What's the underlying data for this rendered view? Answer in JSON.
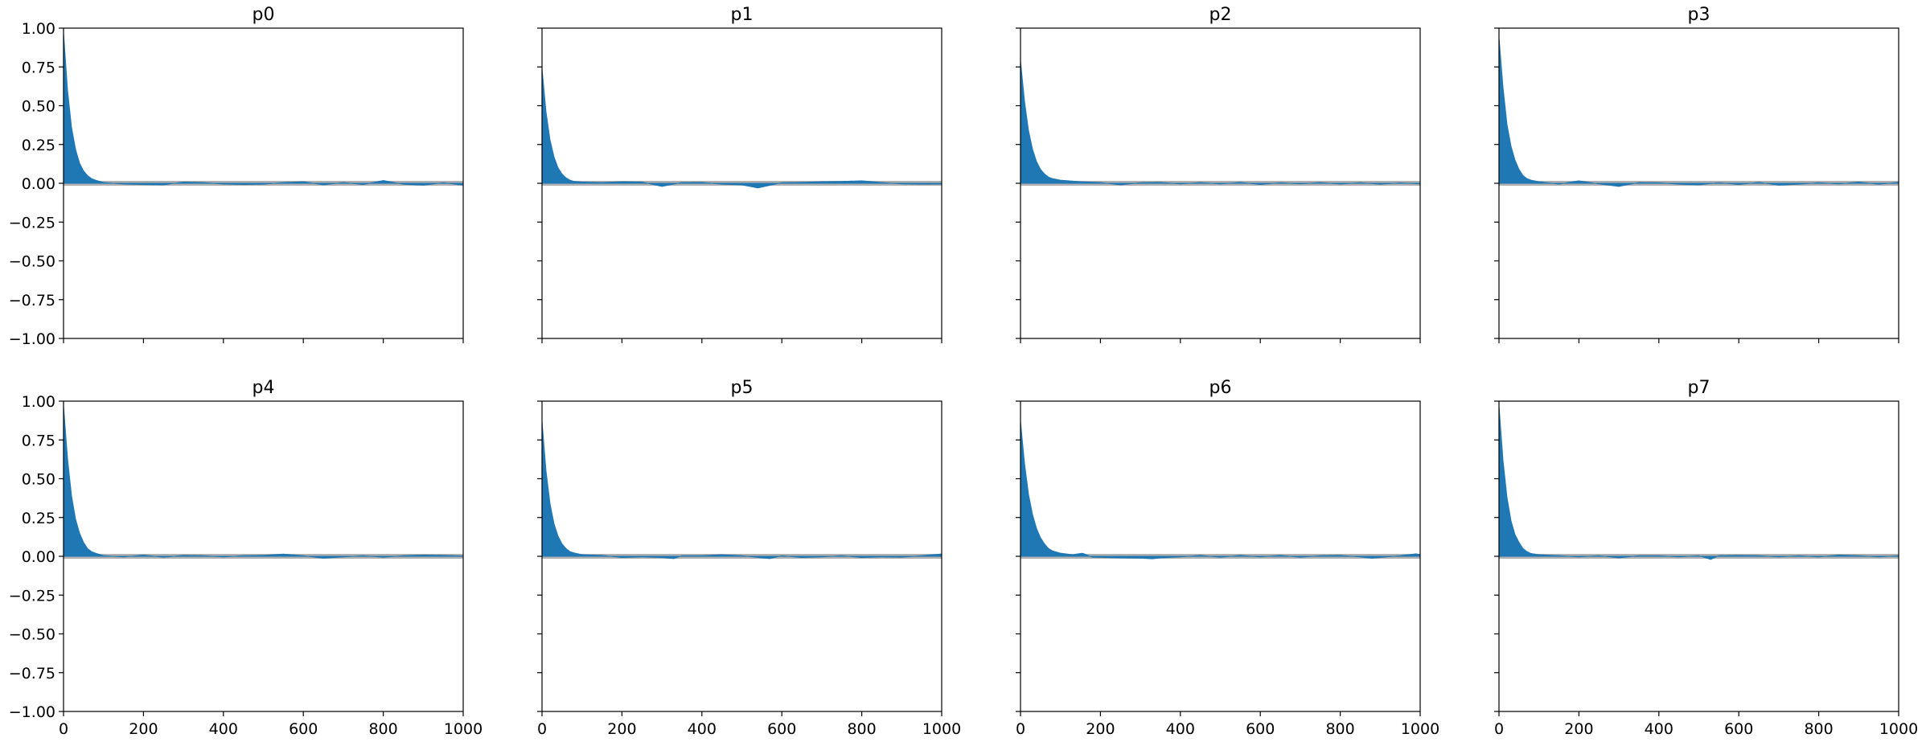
{
  "chart_data": [
    {
      "type": "area",
      "title": "p0",
      "xlim": [
        0,
        1000
      ],
      "ylim": [
        -1.0,
        1.0
      ],
      "grid": false,
      "xticks": [
        "0",
        "200",
        "400",
        "600",
        "800",
        "1000"
      ],
      "yticks": [
        "1.00",
        "0.75",
        "0.50",
        "0.25",
        "0.00",
        "−0.25",
        "−0.50",
        "−0.75",
        "−1.00"
      ],
      "series": [
        {
          "color": "#1f77b4",
          "start": 0.97,
          "decay_lags": 22,
          "points": [
            [
              0,
              0.97
            ],
            [
              10,
              0.6
            ],
            [
              20,
              0.36
            ],
            [
              30,
              0.22
            ],
            [
              40,
              0.13
            ],
            [
              50,
              0.08
            ],
            [
              60,
              0.05
            ],
            [
              70,
              0.03
            ],
            [
              80,
              0.02
            ],
            [
              100,
              0.005
            ],
            [
              150,
              -0.005
            ],
            [
              200,
              -0.008
            ],
            [
              250,
              -0.01
            ],
            [
              300,
              0.008
            ],
            [
              350,
              0.005
            ],
            [
              400,
              -0.005
            ],
            [
              450,
              -0.008
            ],
            [
              500,
              -0.006
            ],
            [
              550,
              0.005
            ],
            [
              600,
              0.01
            ],
            [
              650,
              -0.01
            ],
            [
              700,
              0.005
            ],
            [
              750,
              -0.008
            ],
            [
              800,
              0.018
            ],
            [
              850,
              -0.006
            ],
            [
              900,
              -0.012
            ],
            [
              950,
              0.004
            ],
            [
              1000,
              -0.012
            ]
          ]
        }
      ]
    },
    {
      "type": "area",
      "title": "p1",
      "xlim": [
        0,
        1000
      ],
      "ylim": [
        -1.0,
        1.0
      ],
      "grid": false,
      "xticks": [
        "0",
        "200",
        "400",
        "600",
        "800",
        "1000"
      ],
      "series": [
        {
          "color": "#1f77b4",
          "start": 0.74,
          "decay_lags": 22,
          "points": [
            [
              0,
              0.74
            ],
            [
              10,
              0.46
            ],
            [
              20,
              0.28
            ],
            [
              30,
              0.17
            ],
            [
              40,
              0.1
            ],
            [
              50,
              0.06
            ],
            [
              60,
              0.035
            ],
            [
              70,
              0.02
            ],
            [
              80,
              0.012
            ],
            [
              100,
              0.008
            ],
            [
              150,
              0.005
            ],
            [
              200,
              0.01
            ],
            [
              250,
              0.008
            ],
            [
              300,
              -0.02
            ],
            [
              350,
              0.005
            ],
            [
              400,
              0.006
            ],
            [
              450,
              -0.006
            ],
            [
              500,
              -0.01
            ],
            [
              540,
              -0.03
            ],
            [
              600,
              0.004
            ],
            [
              650,
              0.006
            ],
            [
              700,
              0.01
            ],
            [
              750,
              0.012
            ],
            [
              800,
              0.016
            ],
            [
              850,
              0.005
            ],
            [
              900,
              -0.004
            ],
            [
              950,
              -0.006
            ],
            [
              1000,
              -0.005
            ]
          ]
        }
      ]
    },
    {
      "type": "area",
      "title": "p2",
      "xlim": [
        0,
        1000
      ],
      "ylim": [
        -1.0,
        1.0
      ],
      "grid": false,
      "xticks": [
        "0",
        "200",
        "400",
        "600",
        "800",
        "1000"
      ],
      "series": [
        {
          "color": "#1f77b4",
          "start": 0.79,
          "decay_lags": 26,
          "points": [
            [
              0,
              0.79
            ],
            [
              10,
              0.53
            ],
            [
              20,
              0.34
            ],
            [
              30,
              0.22
            ],
            [
              40,
              0.14
            ],
            [
              50,
              0.09
            ],
            [
              60,
              0.06
            ],
            [
              70,
              0.04
            ],
            [
              80,
              0.03
            ],
            [
              100,
              0.02
            ],
            [
              150,
              0.01
            ],
            [
              200,
              0.005
            ],
            [
              250,
              -0.01
            ],
            [
              300,
              0.004
            ],
            [
              350,
              0.006
            ],
            [
              400,
              -0.004
            ],
            [
              450,
              0.005
            ],
            [
              500,
              -0.004
            ],
            [
              550,
              0.006
            ],
            [
              600,
              -0.008
            ],
            [
              650,
              0.004
            ],
            [
              700,
              -0.004
            ],
            [
              750,
              0.005
            ],
            [
              800,
              -0.005
            ],
            [
              850,
              0.004
            ],
            [
              900,
              -0.006
            ],
            [
              950,
              0.003
            ],
            [
              1000,
              -0.004
            ]
          ]
        }
      ]
    },
    {
      "type": "area",
      "title": "p3",
      "xlim": [
        0,
        1000
      ],
      "ylim": [
        -1.0,
        1.0
      ],
      "grid": false,
      "xticks": [
        "0",
        "200",
        "400",
        "600",
        "800",
        "1000"
      ],
      "series": [
        {
          "color": "#1f77b4",
          "start": 0.94,
          "decay_lags": 24,
          "points": [
            [
              0,
              0.94
            ],
            [
              10,
              0.62
            ],
            [
              20,
              0.38
            ],
            [
              30,
              0.24
            ],
            [
              40,
              0.15
            ],
            [
              50,
              0.09
            ],
            [
              60,
              0.05
            ],
            [
              70,
              0.03
            ],
            [
              80,
              0.02
            ],
            [
              100,
              0.01
            ],
            [
              150,
              -0.005
            ],
            [
              200,
              0.016
            ],
            [
              250,
              -0.004
            ],
            [
              300,
              -0.02
            ],
            [
              350,
              0.005
            ],
            [
              400,
              0.004
            ],
            [
              450,
              -0.006
            ],
            [
              500,
              -0.01
            ],
            [
              550,
              0.004
            ],
            [
              600,
              -0.008
            ],
            [
              650,
              0.006
            ],
            [
              700,
              -0.012
            ],
            [
              750,
              -0.006
            ],
            [
              800,
              0.004
            ],
            [
              850,
              -0.004
            ],
            [
              900,
              0.008
            ],
            [
              950,
              -0.006
            ],
            [
              1000,
              0.006
            ]
          ]
        }
      ]
    },
    {
      "type": "area",
      "title": "p4",
      "xlim": [
        0,
        1000
      ],
      "ylim": [
        -1.0,
        1.0
      ],
      "grid": false,
      "xticks": [
        "0",
        "200",
        "400",
        "600",
        "800",
        "1000"
      ],
      "series": [
        {
          "color": "#1f77b4",
          "start": 0.97,
          "decay_lags": 24,
          "points": [
            [
              0,
              0.97
            ],
            [
              10,
              0.63
            ],
            [
              20,
              0.39
            ],
            [
              30,
              0.24
            ],
            [
              40,
              0.15
            ],
            [
              50,
              0.09
            ],
            [
              60,
              0.05
            ],
            [
              70,
              0.03
            ],
            [
              80,
              0.02
            ],
            [
              100,
              0.004
            ],
            [
              150,
              -0.004
            ],
            [
              200,
              0.008
            ],
            [
              250,
              -0.006
            ],
            [
              300,
              0.006
            ],
            [
              350,
              0.004
            ],
            [
              400,
              -0.004
            ],
            [
              450,
              0.004
            ],
            [
              500,
              0.006
            ],
            [
              550,
              0.014
            ],
            [
              600,
              0.004
            ],
            [
              650,
              -0.012
            ],
            [
              700,
              -0.004
            ],
            [
              750,
              0.004
            ],
            [
              800,
              -0.006
            ],
            [
              850,
              0.004
            ],
            [
              900,
              0.008
            ],
            [
              950,
              0.006
            ],
            [
              1000,
              0.002
            ]
          ]
        }
      ]
    },
    {
      "type": "area",
      "title": "p5",
      "xlim": [
        0,
        1000
      ],
      "ylim": [
        -1.0,
        1.0
      ],
      "grid": false,
      "xticks": [
        "0",
        "200",
        "400",
        "600",
        "800",
        "1000"
      ],
      "series": [
        {
          "color": "#1f77b4",
          "start": 0.87,
          "decay_lags": 22,
          "points": [
            [
              0,
              0.87
            ],
            [
              10,
              0.55
            ],
            [
              20,
              0.34
            ],
            [
              30,
              0.21
            ],
            [
              40,
              0.13
            ],
            [
              50,
              0.08
            ],
            [
              60,
              0.05
            ],
            [
              70,
              0.03
            ],
            [
              80,
              0.022
            ],
            [
              100,
              0.01
            ],
            [
              150,
              0.006
            ],
            [
              200,
              -0.008
            ],
            [
              250,
              -0.004
            ],
            [
              300,
              -0.008
            ],
            [
              330,
              -0.015
            ],
            [
              350,
              0.004
            ],
            [
              400,
              0.004
            ],
            [
              450,
              0.01
            ],
            [
              500,
              0.004
            ],
            [
              550,
              -0.01
            ],
            [
              570,
              -0.015
            ],
            [
              600,
              0.004
            ],
            [
              650,
              -0.008
            ],
            [
              700,
              -0.004
            ],
            [
              750,
              0.004
            ],
            [
              800,
              -0.008
            ],
            [
              850,
              -0.004
            ],
            [
              900,
              -0.006
            ],
            [
              950,
              0.004
            ],
            [
              1000,
              0.015
            ]
          ]
        }
      ]
    },
    {
      "type": "area",
      "title": "p6",
      "xlim": [
        0,
        1000
      ],
      "ylim": [
        -1.0,
        1.0
      ],
      "grid": false,
      "xticks": [
        "0",
        "200",
        "400",
        "600",
        "800",
        "1000"
      ],
      "series": [
        {
          "color": "#1f77b4",
          "start": 0.87,
          "decay_lags": 28,
          "points": [
            [
              0,
              0.87
            ],
            [
              10,
              0.6
            ],
            [
              20,
              0.4
            ],
            [
              30,
              0.27
            ],
            [
              40,
              0.18
            ],
            [
              50,
              0.12
            ],
            [
              60,
              0.08
            ],
            [
              70,
              0.05
            ],
            [
              80,
              0.035
            ],
            [
              100,
              0.02
            ],
            [
              130,
              0.01
            ],
            [
              155,
              0.02
            ],
            [
              180,
              -0.006
            ],
            [
              250,
              -0.01
            ],
            [
              300,
              -0.012
            ],
            [
              330,
              -0.016
            ],
            [
              350,
              -0.01
            ],
            [
              400,
              -0.004
            ],
            [
              450,
              0.006
            ],
            [
              500,
              -0.006
            ],
            [
              550,
              0.006
            ],
            [
              600,
              -0.004
            ],
            [
              650,
              0.006
            ],
            [
              700,
              -0.006
            ],
            [
              750,
              0.004
            ],
            [
              800,
              0.006
            ],
            [
              850,
              -0.004
            ],
            [
              880,
              -0.012
            ],
            [
              950,
              0.004
            ],
            [
              990,
              0.016
            ],
            [
              1000,
              0.01
            ]
          ]
        }
      ]
    },
    {
      "type": "area",
      "title": "p7",
      "xlim": [
        0,
        1000
      ],
      "ylim": [
        -1.0,
        1.0
      ],
      "grid": false,
      "xticks": [
        "0",
        "200",
        "400",
        "600",
        "800",
        "1000"
      ],
      "series": [
        {
          "color": "#1f77b4",
          "start": 0.97,
          "decay_lags": 22,
          "points": [
            [
              0,
              0.97
            ],
            [
              10,
              0.62
            ],
            [
              20,
              0.38
            ],
            [
              30,
              0.23
            ],
            [
              40,
              0.14
            ],
            [
              50,
              0.09
            ],
            [
              60,
              0.05
            ],
            [
              70,
              0.03
            ],
            [
              80,
              0.018
            ],
            [
              100,
              0.01
            ],
            [
              150,
              0.004
            ],
            [
              200,
              -0.004
            ],
            [
              250,
              0.004
            ],
            [
              300,
              -0.01
            ],
            [
              350,
              0.004
            ],
            [
              400,
              0.004
            ],
            [
              450,
              -0.004
            ],
            [
              500,
              0.004
            ],
            [
              530,
              -0.02
            ],
            [
              550,
              0.004
            ],
            [
              600,
              0.006
            ],
            [
              650,
              0.004
            ],
            [
              700,
              -0.004
            ],
            [
              750,
              0.004
            ],
            [
              800,
              -0.004
            ],
            [
              850,
              0.008
            ],
            [
              900,
              0.004
            ],
            [
              950,
              -0.004
            ],
            [
              1000,
              0.004
            ]
          ]
        }
      ]
    }
  ],
  "styles": {
    "fill_color": "#1f77b4",
    "zero_band_color": "#b0b0b0",
    "frame_color": "#000000"
  }
}
